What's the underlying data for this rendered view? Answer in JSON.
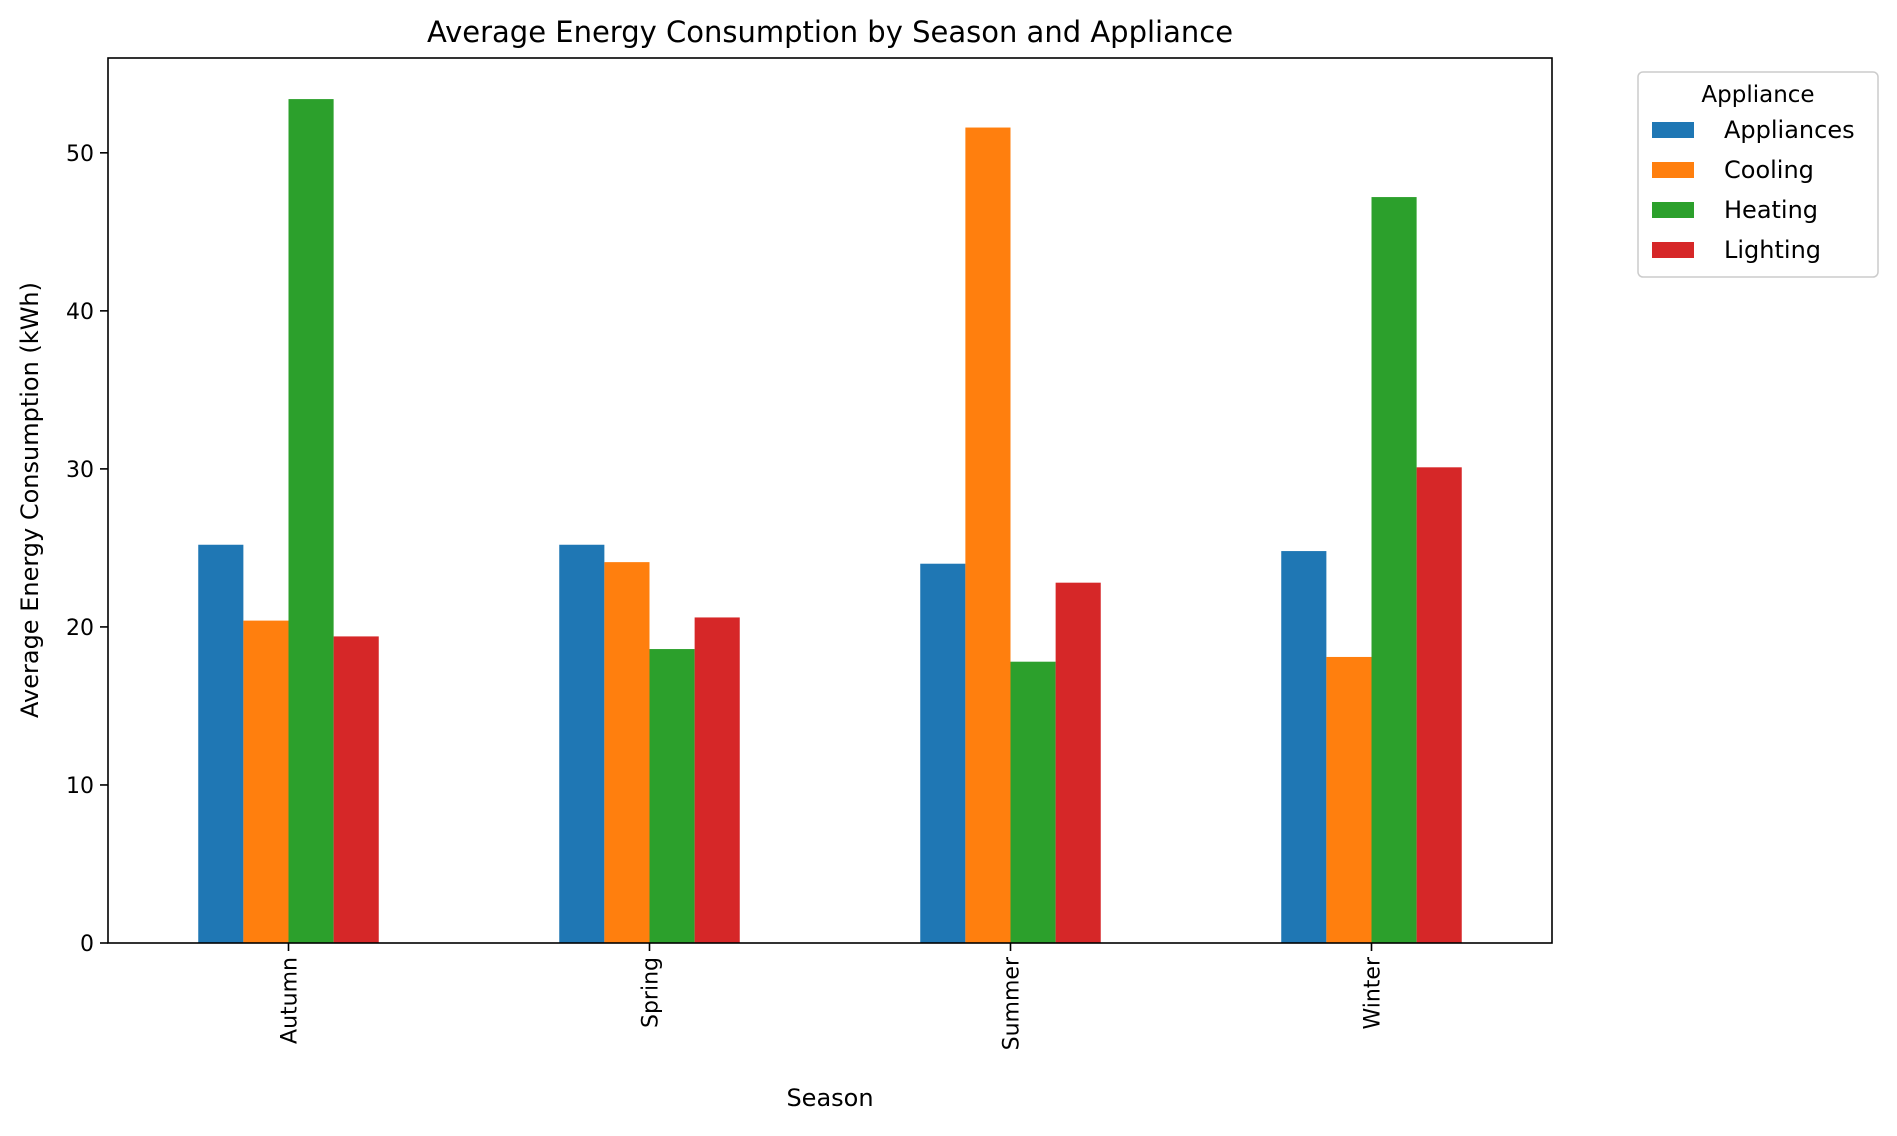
{
  "chart_data": {
    "type": "bar",
    "title": "Average Energy Consumption by Season and Appliance",
    "xlabel": "Season",
    "ylabel": "Average Energy Consumption (kWh)",
    "ylim": [
      0,
      56
    ],
    "yticks": [
      "0",
      "10",
      "20",
      "30",
      "40",
      "50"
    ],
    "grid": false,
    "legend_title": "Appliance",
    "legend_position": "outside-top-right",
    "categories": [
      "Autumn",
      "Spring",
      "Summer",
      "Winter"
    ],
    "series": [
      {
        "name": "Appliances",
        "color": "#1f77b4",
        "values": [
          25.2,
          25.2,
          24.0,
          24.8
        ]
      },
      {
        "name": "Cooling",
        "color": "#ff7f0e",
        "values": [
          20.4,
          24.1,
          51.6,
          18.1
        ]
      },
      {
        "name": "Heating",
        "color": "#2ca02c",
        "values": [
          53.4,
          18.6,
          17.8,
          47.2
        ]
      },
      {
        "name": "Lighting",
        "color": "#d62728",
        "values": [
          19.4,
          20.6,
          22.8,
          30.1
        ]
      }
    ]
  }
}
